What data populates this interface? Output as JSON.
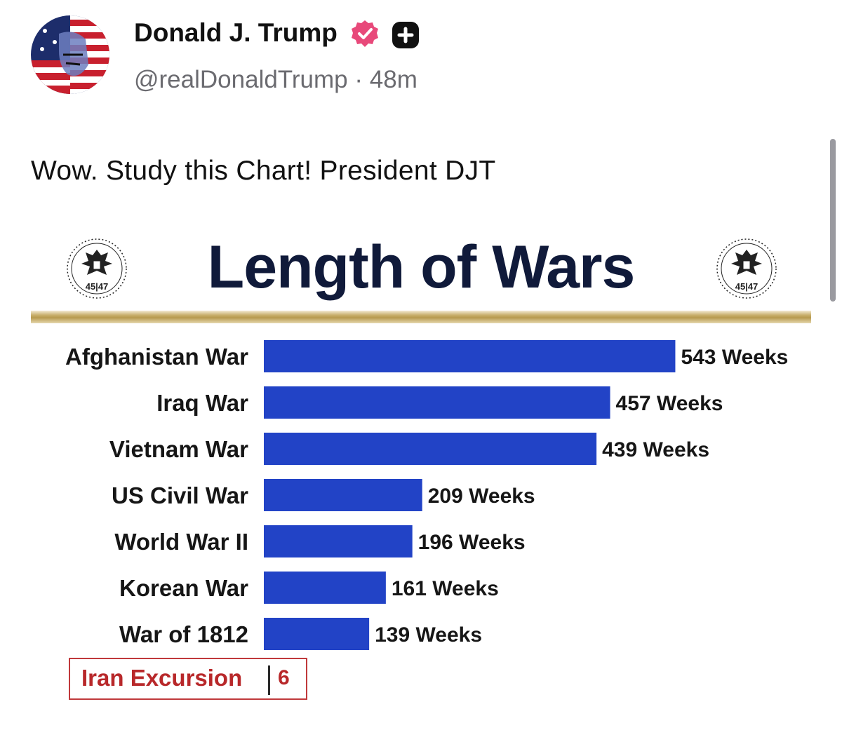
{
  "post": {
    "display_name": "Donald J. Trump",
    "handle": "@realDonaldTrump",
    "separator": "·",
    "time_ago": "48m",
    "text": "Wow. Study this Chart! President DJT",
    "verified_icon": "verified-badge-icon",
    "extra_icon": "plus-badge-icon",
    "colors": {
      "verified": "#e8497a",
      "handle": "#6b6b70"
    }
  },
  "chart_data": {
    "type": "bar",
    "orientation": "horizontal",
    "title": "Length of Wars",
    "seal_text": "45|47",
    "categories": [
      "Afghanistan War",
      "Iraq War",
      "Vietnam War",
      "US Civil War",
      "World War II",
      "Korean War",
      "War of 1812"
    ],
    "values": [
      543,
      457,
      439,
      209,
      196,
      161,
      139
    ],
    "value_labels": [
      "543 Weeks",
      "457 Weeks",
      "439 Weeks",
      "209 Weeks",
      "196 Weeks",
      "161 Weeks",
      "139 Weeks"
    ],
    "bar_color": "#2243c6",
    "grid": false,
    "annotation": {
      "label": "Iran Excursion",
      "value": "6",
      "color": "#b8282a"
    }
  }
}
